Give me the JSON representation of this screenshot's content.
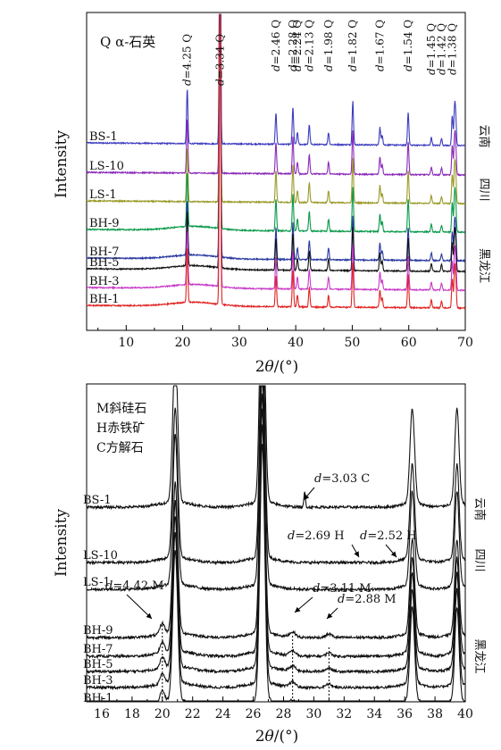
{
  "chart_data": [
    {
      "type": "line",
      "ylabel": "Intensity",
      "xlabel_symbol": "θ",
      "xlabel_prefix": "2",
      "xlabel_unit": "/(°)",
      "xlim": [
        3,
        70
      ],
      "x_ticks": [
        10,
        20,
        30,
        40,
        50,
        60,
        70
      ],
      "legend_title": "Q α-石英",
      "series": [
        {
          "name": "BS-1",
          "color": "#3c3cc0"
        },
        {
          "name": "LS-10",
          "color": "#8a2ab8"
        },
        {
          "name": "LS-1",
          "color": "#9a9a2a"
        },
        {
          "name": "BH-9",
          "color": "#0a9a4a"
        },
        {
          "name": "BH-7",
          "color": "#2a3aa0"
        },
        {
          "name": "BH-5",
          "color": "#111111"
        },
        {
          "name": "BH-3",
          "color": "#c83ac8"
        },
        {
          "name": "BH-1",
          "color": "#e02424"
        }
      ],
      "peak_labels": [
        {
          "d": "4.25",
          "mineral": "Q",
          "x": 20.8
        },
        {
          "d": "3.34",
          "mineral": "Q",
          "x": 26.6
        },
        {
          "d": "2.46",
          "mineral": "Q",
          "x": 36.5
        },
        {
          "d": "2.28",
          "mineral": "Q",
          "x": 39.5
        },
        {
          "d": "2.24",
          "mineral": "Q",
          "x": 40.3
        },
        {
          "d": "2.13",
          "mineral": "Q",
          "x": 42.4
        },
        {
          "d": "1.98",
          "mineral": "Q",
          "x": 45.8
        },
        {
          "d": "1.82",
          "mineral": "Q",
          "x": 50.1
        },
        {
          "d": "1.67",
          "mineral": "Q",
          "x": 54.9
        },
        {
          "d": "1.54",
          "mineral": "Q",
          "x": 59.9
        },
        {
          "d": "1.45",
          "mineral": "Q",
          "x": 64.0
        },
        {
          "d": "1.42",
          "mineral": "Q",
          "x": 65.8
        },
        {
          "d": "1.38",
          "mineral": "Q",
          "x": 67.7
        }
      ],
      "region_labels": [
        {
          "text": "云南",
          "series": [
            "BS-1"
          ]
        },
        {
          "text": "四川",
          "series": [
            "LS-10",
            "LS-1"
          ]
        },
        {
          "text": "黑龙江",
          "series": [
            "BH-9",
            "BH-7",
            "BH-5",
            "BH-3",
            "BH-1"
          ]
        }
      ]
    },
    {
      "type": "line",
      "ylabel": "Intensity",
      "xlabel_symbol": "θ",
      "xlabel_prefix": "2",
      "xlabel_unit": "/(°)",
      "xlim": [
        15,
        40
      ],
      "x_ticks": [
        16,
        18,
        20,
        22,
        24,
        26,
        28,
        30,
        32,
        34,
        36,
        38,
        40
      ],
      "legend_lines": [
        "M斜硅石",
        "H赤铁矿",
        "C方解石"
      ],
      "series": [
        {
          "name": "BS-1"
        },
        {
          "name": "LS-10"
        },
        {
          "name": "LS-1"
        },
        {
          "name": "BH-9"
        },
        {
          "name": "BH-7"
        },
        {
          "name": "BH-5"
        },
        {
          "name": "BH-3"
        },
        {
          "name": "BH-1"
        }
      ],
      "annotations": [
        {
          "d": "3.03",
          "mineral": "C",
          "x": 29.4
        },
        {
          "d": "2.69",
          "mineral": "H",
          "x": 33.2
        },
        {
          "d": "2.52",
          "mineral": "H",
          "x": 35.6
        },
        {
          "d": "4.42",
          "mineral": "M",
          "x": 20.0
        },
        {
          "d": "3.11",
          "mineral": "M",
          "x": 28.6
        },
        {
          "d": "2.88",
          "mineral": "M",
          "x": 31.0
        }
      ],
      "region_labels": [
        {
          "text": "云南",
          "series": [
            "BS-1"
          ]
        },
        {
          "text": "四川",
          "series": [
            "LS-10",
            "LS-1"
          ]
        },
        {
          "text": "黑龙江",
          "series": [
            "BH-9",
            "BH-7",
            "BH-5",
            "BH-3",
            "BH-1"
          ]
        }
      ]
    }
  ]
}
